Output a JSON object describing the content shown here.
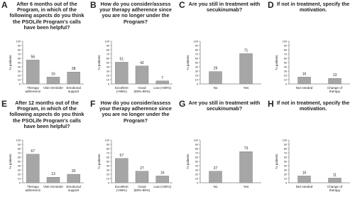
{
  "chart_data": [
    {
      "type": "bar",
      "panel": "A",
      "title": "After 6 months out of the Program, in which of the following aspects do you think the PSOLife Program's calls have been helpful?",
      "ylabel": "% patients",
      "categories": [
        "Therapy adherence",
        "Visit reminder",
        "Emotional support"
      ],
      "values": [
        56,
        16,
        28
      ],
      "color": "#a6a6a6",
      "ylim": [
        0,
        100
      ],
      "yticks": [
        0,
        10,
        20,
        30,
        40,
        50,
        60,
        70,
        80,
        90,
        100
      ]
    },
    {
      "type": "bar",
      "panel": "B",
      "title": "How do you consider/assess your therapy adherence since you are no longer under the Program?",
      "ylabel": "% patients",
      "categories": [
        "Excellent (>95%)",
        "Good (80%-95%)",
        "Low (<80%)"
      ],
      "values": [
        51,
        42,
        7
      ],
      "color": "#a6a6a6",
      "ylim": [
        0,
        100
      ],
      "yticks": [
        0,
        10,
        20,
        30,
        40,
        50,
        60,
        70,
        80,
        90,
        100
      ]
    },
    {
      "type": "bar",
      "panel": "C",
      "title": "Are you still in treatment with secukinumab?",
      "ylabel": "% patients",
      "categories": [
        "No",
        "Yes"
      ],
      "values": [
        29,
        71
      ],
      "color": "#a6a6a6",
      "ylim": [
        0,
        100
      ],
      "yticks": [
        0,
        10,
        20,
        30,
        40,
        50,
        60,
        70,
        80,
        90,
        100
      ]
    },
    {
      "type": "bar",
      "panel": "D",
      "title": "If not in treatment, specify the motivation.",
      "ylabel": "% patients",
      "categories": [
        "Not needed",
        "Change of therapy"
      ],
      "values": [
        16,
        13
      ],
      "color": "#a6a6a6",
      "ylim": [
        0,
        100
      ],
      "yticks": [
        0,
        10,
        20,
        30,
        40,
        50,
        60,
        70,
        80,
        90,
        100
      ]
    },
    {
      "type": "bar",
      "panel": "E",
      "title": "After 12 months out of the Program, in which of the following aspects do you think the PSOLife Program's calls have been helpful?",
      "ylabel": "% patients",
      "categories": [
        "Therapy adherence",
        "Visit reminder",
        "Emotional support"
      ],
      "values": [
        67,
        13,
        20
      ],
      "color": "#a6a6a6",
      "ylim": [
        0,
        100
      ],
      "yticks": [
        0,
        10,
        20,
        30,
        40,
        50,
        60,
        70,
        80,
        90,
        100
      ]
    },
    {
      "type": "bar",
      "panel": "F",
      "title": "How do you consider/assess your therapy adherence since you are no longer under the Program?",
      "ylabel": "% patients",
      "categories": [
        "Excellent (>95%)",
        "Good (80%-95%)",
        "Low (<80%)"
      ],
      "values": [
        57,
        27,
        16
      ],
      "color": "#a6a6a6",
      "ylim": [
        0,
        100
      ],
      "yticks": [
        0,
        10,
        20,
        30,
        40,
        50,
        60,
        70,
        80,
        90,
        100
      ]
    },
    {
      "type": "bar",
      "panel": "G",
      "title": "Are you still in treatment with secukinumab?",
      "ylabel": "% patients",
      "categories": [
        "No",
        "Yes"
      ],
      "values": [
        27,
        73
      ],
      "color": "#a6a6a6",
      "ylim": [
        0,
        100
      ],
      "yticks": [
        0,
        10,
        20,
        30,
        40,
        50,
        60,
        70,
        80,
        90,
        100
      ]
    },
    {
      "type": "bar",
      "panel": "H",
      "title": "If not in treatment, specify the motivation.",
      "ylabel": "% patients",
      "categories": [
        "Not needed",
        "Change of therapy"
      ],
      "values": [
        16,
        11
      ],
      "color": "#a6a6a6",
      "ylim": [
        0,
        100
      ],
      "yticks": [
        0,
        10,
        20,
        30,
        40,
        50,
        60,
        70,
        80,
        90,
        100
      ]
    }
  ]
}
